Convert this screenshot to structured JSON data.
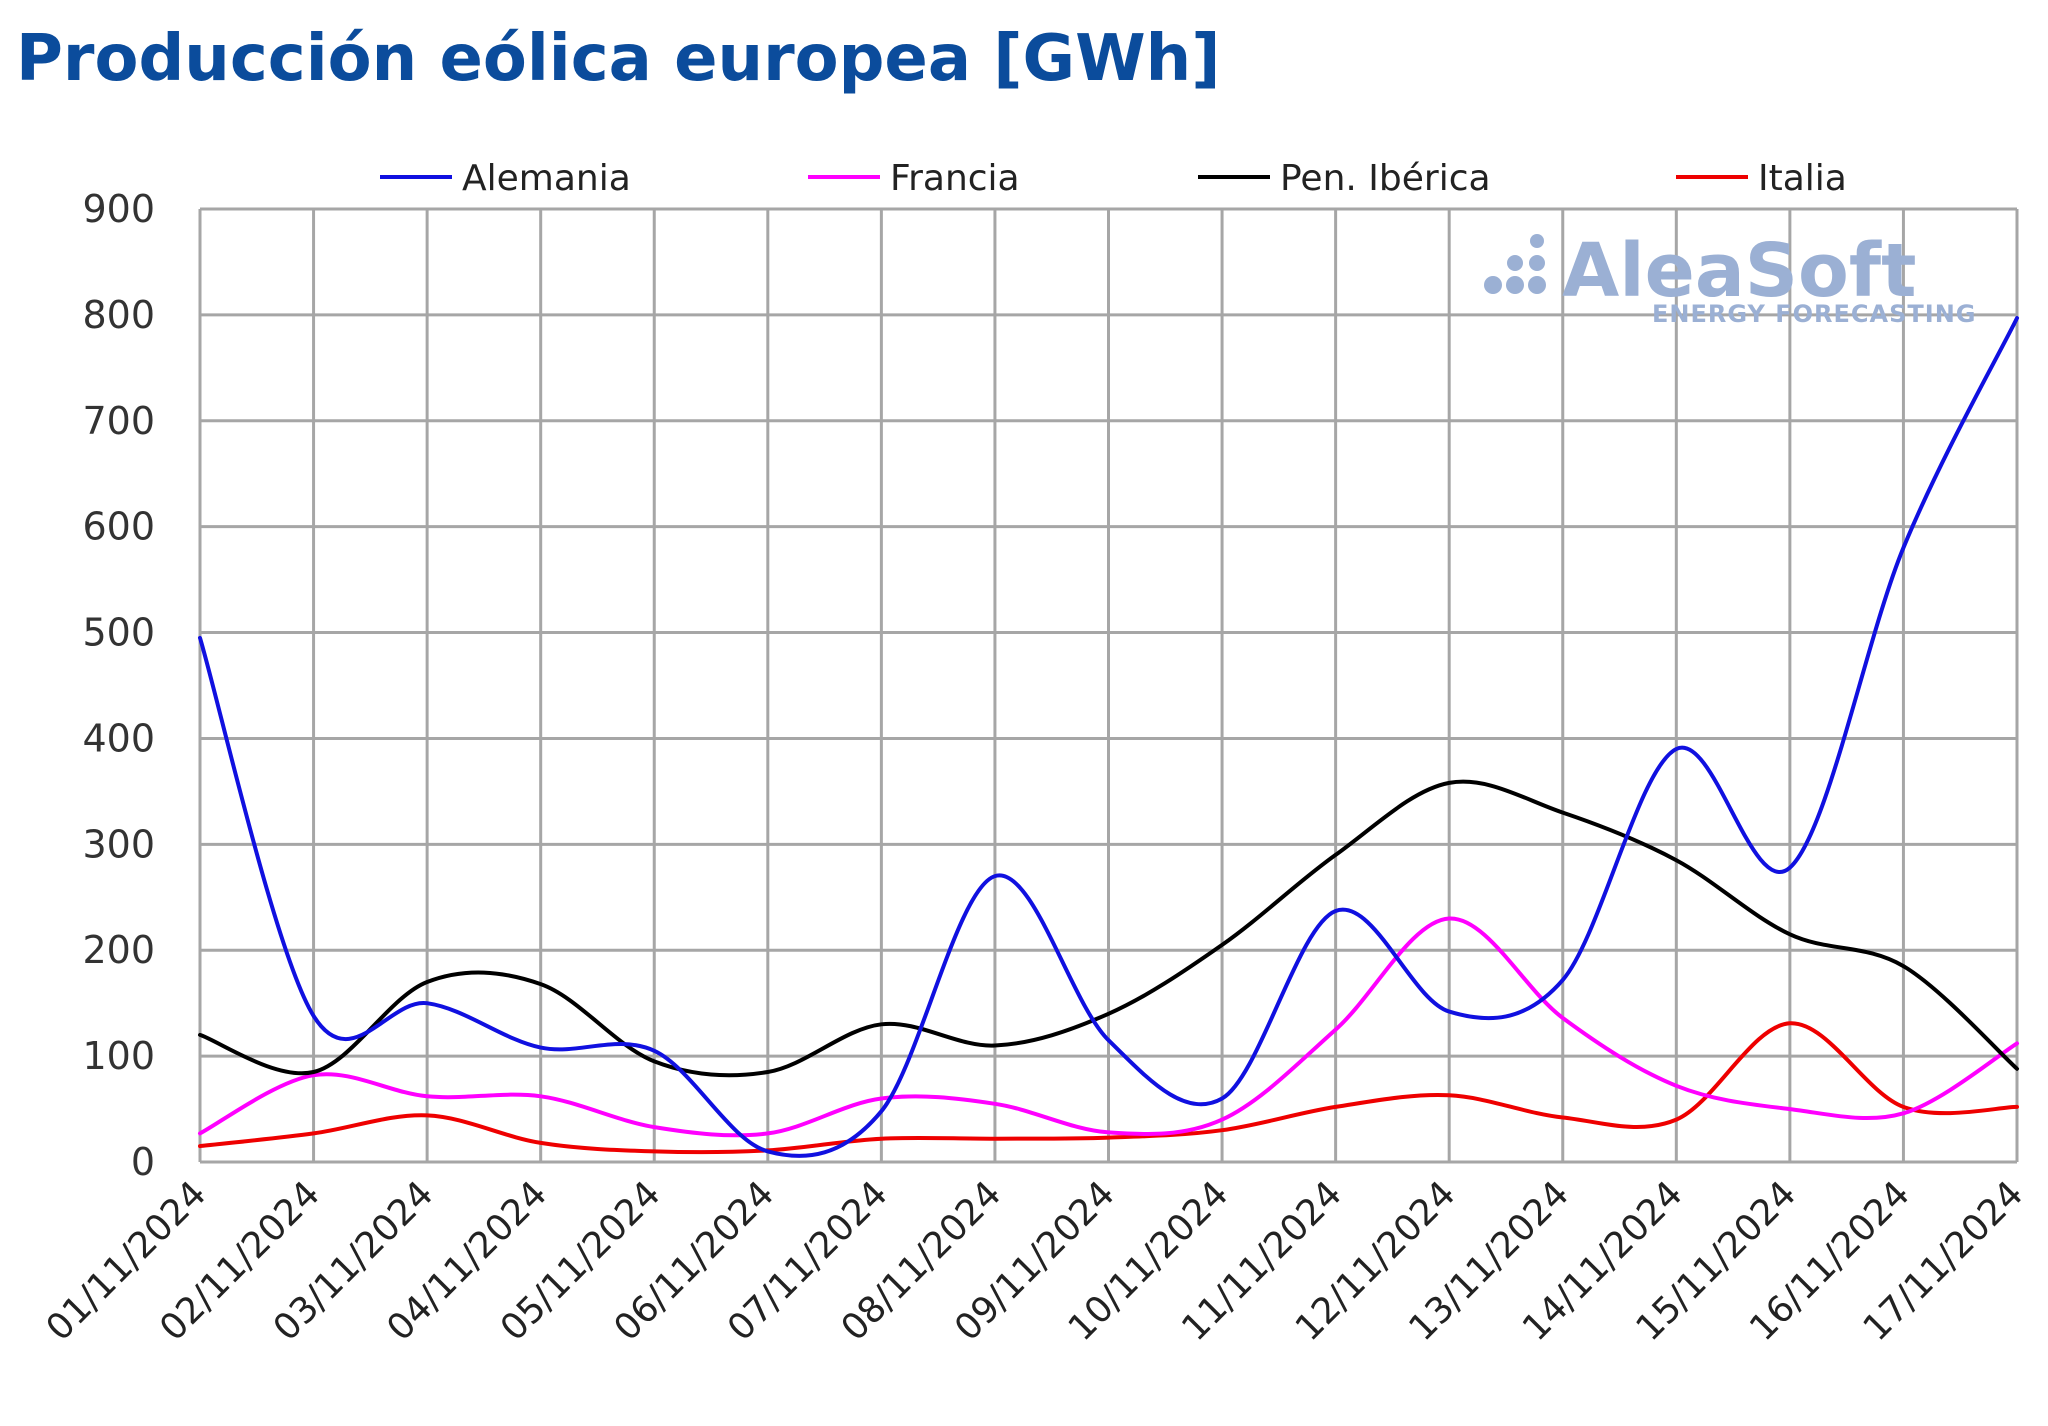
{
  "chart_data": {
    "type": "line",
    "title": "Producción eólica europea [GWh]",
    "xlabel": "",
    "ylabel": "",
    "ylim": [
      0,
      900
    ],
    "yticks": [
      0,
      100,
      200,
      300,
      400,
      500,
      600,
      700,
      800,
      900
    ],
    "grid": true,
    "legend_position": "top",
    "categories": [
      "01/11/2024",
      "02/11/2024",
      "03/11/2024",
      "04/11/2024",
      "05/11/2024",
      "06/11/2024",
      "07/11/2024",
      "08/11/2024",
      "09/11/2024",
      "10/11/2024",
      "11/11/2024",
      "12/11/2024",
      "13/11/2024",
      "14/11/2024",
      "15/11/2024",
      "16/11/2024",
      "17/11/2024"
    ],
    "series": [
      {
        "name": "Alemania",
        "color": "#1010e0",
        "values": [
          495,
          138,
          150,
          108,
          105,
          10,
          48,
          270,
          115,
          60,
          237,
          142,
          172,
          390,
          278,
          580,
          797
        ]
      },
      {
        "name": "Francia",
        "color": "#ff00ff",
        "values": [
          27,
          82,
          62,
          62,
          33,
          27,
          60,
          55,
          28,
          40,
          125,
          230,
          136,
          72,
          50,
          46,
          112
        ]
      },
      {
        "name": "Pen. Ibérica",
        "color": "#000000",
        "values": [
          120,
          85,
          170,
          168,
          95,
          85,
          130,
          110,
          140,
          205,
          290,
          358,
          330,
          285,
          215,
          185,
          88
        ]
      },
      {
        "name": "Italia",
        "color": "#ee0000",
        "values": [
          15,
          27,
          44,
          18,
          10,
          11,
          22,
          22,
          23,
          30,
          52,
          63,
          42,
          40,
          131,
          52,
          52
        ]
      }
    ]
  },
  "watermark": {
    "brand": "AleaSoft",
    "tagline": "ENERGY FORECASTING",
    "color": "#9bb0d4"
  }
}
